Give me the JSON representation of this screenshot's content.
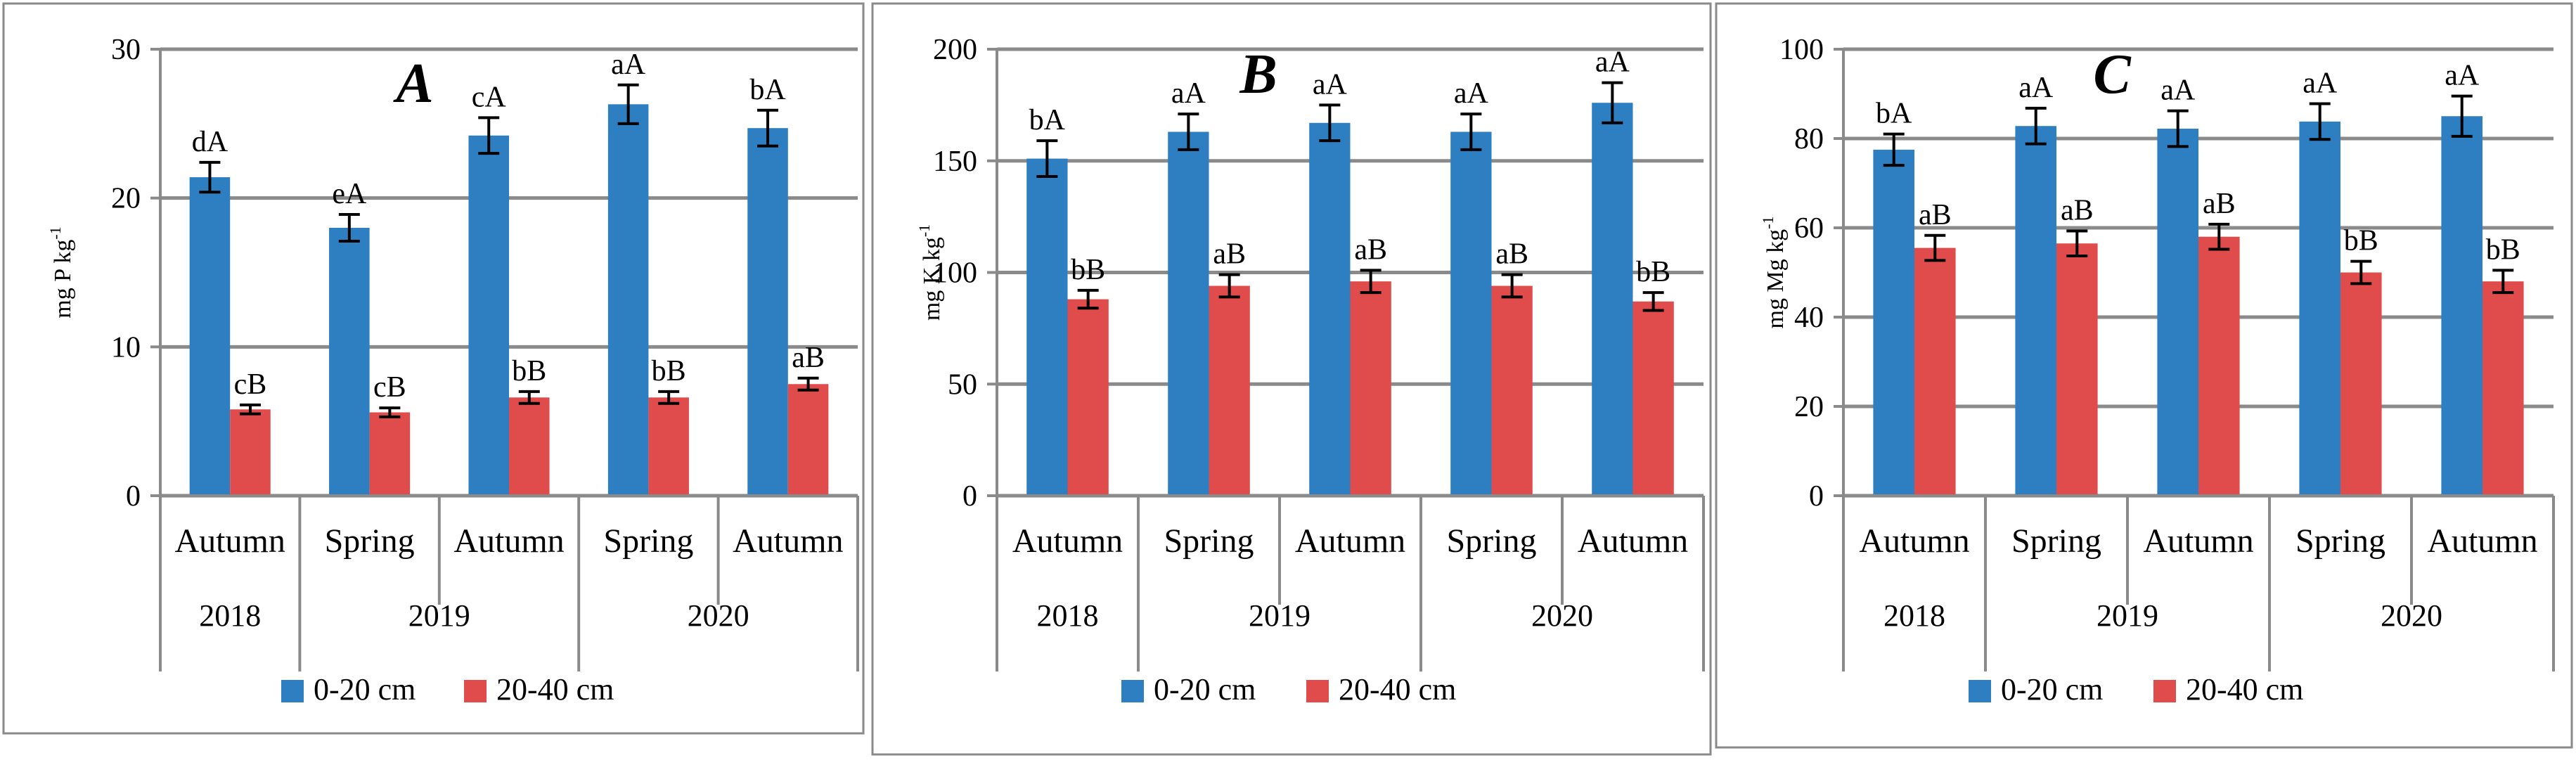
{
  "chart_data": [
    {
      "type": "bar",
      "panel_letter": "A",
      "ylabel": "mg P kg",
      "ylabel_sup": "-1",
      "ylim": [
        0,
        30
      ],
      "yticks": [
        "0",
        "10",
        "20",
        "30"
      ],
      "categories": [
        "Autumn",
        "Spring",
        "Autumn",
        "Spring",
        "Autumn"
      ],
      "years": [
        {
          "label": "2018",
          "span": [
            0,
            0
          ]
        },
        {
          "label": "2019",
          "span": [
            1,
            2
          ]
        },
        {
          "label": "2020",
          "span": [
            3,
            4
          ]
        }
      ],
      "series": [
        {
          "name": "0-20 cm",
          "color": "#2e7fc1",
          "values": [
            21.4,
            18.0,
            24.2,
            26.3,
            24.7
          ],
          "errors": [
            1.0,
            0.9,
            1.2,
            1.3,
            1.2
          ],
          "labels": [
            "dA",
            "eA",
            "cA",
            "aA",
            "bA"
          ]
        },
        {
          "name": "20-40 cm",
          "color": "#e04b4b",
          "values": [
            5.8,
            5.6,
            6.6,
            6.6,
            7.5
          ],
          "errors": [
            0.3,
            0.3,
            0.4,
            0.4,
            0.4
          ],
          "labels": [
            "cB",
            "cB",
            "bB",
            "bB",
            "aB"
          ]
        }
      ]
    },
    {
      "type": "bar",
      "panel_letter": "B",
      "ylabel": "mg K kg",
      "ylabel_sup": "-1",
      "ylim": [
        0,
        200
      ],
      "yticks": [
        "0",
        "50",
        "100",
        "150",
        "200"
      ],
      "categories": [
        "Autumn",
        "Spring",
        "Autumn",
        "Spring",
        "Autumn"
      ],
      "years": [
        {
          "label": "2018",
          "span": [
            0,
            0
          ]
        },
        {
          "label": "2019",
          "span": [
            1,
            2
          ]
        },
        {
          "label": "2020",
          "span": [
            3,
            4
          ]
        }
      ],
      "series": [
        {
          "name": "0-20 cm",
          "color": "#2e7fc1",
          "values": [
            151,
            163,
            167,
            163,
            176
          ],
          "errors": [
            8,
            8,
            8,
            8,
            9
          ],
          "labels": [
            "bA",
            "aA",
            "aA",
            "aA",
            "aA"
          ]
        },
        {
          "name": "20-40 cm",
          "color": "#e04b4b",
          "values": [
            88,
            94,
            96,
            94,
            87
          ],
          "errors": [
            4,
            5,
            5,
            5,
            4
          ],
          "labels": [
            "bB",
            "aB",
            "aB",
            "aB",
            "bB"
          ]
        }
      ]
    },
    {
      "type": "bar",
      "panel_letter": "C",
      "ylabel": "mg Mg kg",
      "ylabel_sup": "-1",
      "ylim": [
        0,
        100
      ],
      "yticks": [
        "0",
        "20",
        "40",
        "60",
        "80",
        "100"
      ],
      "categories": [
        "Autumn",
        "Spring",
        "Autumn",
        "Spring",
        "Autumn"
      ],
      "years": [
        {
          "label": "2018",
          "span": [
            0,
            0
          ]
        },
        {
          "label": "2019",
          "span": [
            1,
            2
          ]
        },
        {
          "label": "2020",
          "span": [
            3,
            4
          ]
        }
      ],
      "series": [
        {
          "name": "0-20 cm",
          "color": "#2e7fc1",
          "values": [
            77.5,
            82.8,
            82.2,
            83.8,
            85.0
          ],
          "errors": [
            3.5,
            4,
            4,
            4,
            4.5
          ],
          "labels": [
            "bA",
            "aA",
            "aA",
            "aA",
            "aA"
          ]
        },
        {
          "name": "20-40 cm",
          "color": "#e04b4b",
          "values": [
            55.5,
            56.5,
            58.0,
            50.0,
            48.0
          ],
          "errors": [
            2.8,
            2.8,
            2.8,
            2.5,
            2.5
          ],
          "labels": [
            "aB",
            "aB",
            "aB",
            "bB",
            "bB"
          ]
        }
      ]
    }
  ]
}
